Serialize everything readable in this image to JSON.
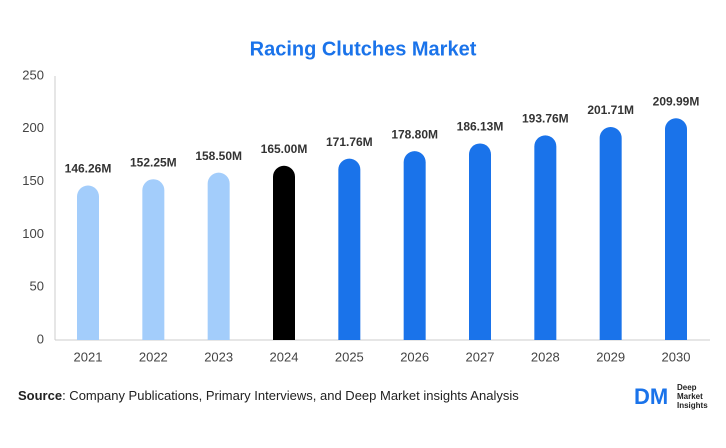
{
  "chart_data": {
    "type": "bar",
    "title": "Racing Clutches Market",
    "categories": [
      "2021",
      "2022",
      "2023",
      "2024",
      "2025",
      "2026",
      "2027",
      "2028",
      "2029",
      "2030"
    ],
    "values": [
      146.26,
      152.25,
      158.5,
      165.0,
      171.76,
      178.8,
      186.13,
      193.76,
      201.71,
      209.99
    ],
    "value_labels": [
      "146.26M",
      "152.25M",
      "158.50M",
      "165.00M",
      "171.76M",
      "178.80M",
      "186.13M",
      "193.76M",
      "201.71M",
      "209.99M"
    ],
    "colors": [
      "#a3cdfb",
      "#a3cdfb",
      "#a3cdfb",
      "#000000",
      "#1a73ea",
      "#1a73ea",
      "#1a73ea",
      "#1a73ea",
      "#1a73ea",
      "#1a73ea"
    ],
    "ylim": [
      0,
      250
    ],
    "yticks": [
      0,
      50,
      100,
      150,
      200,
      250
    ],
    "grid": false
  },
  "footer": {
    "source_label": "Source",
    "source_text": ": Company Publications, Primary Interviews, and Deep Market insights Analysis",
    "logo": {
      "mark": "DM",
      "lines": [
        "Deep",
        "Market",
        "Insights"
      ]
    }
  }
}
